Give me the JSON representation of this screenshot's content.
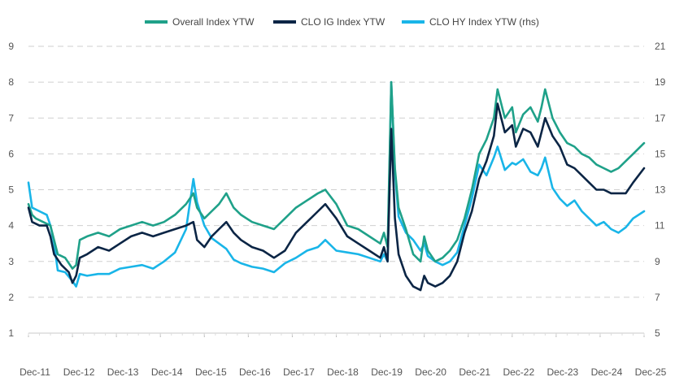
{
  "chart_data": {
    "type": "line",
    "title": "",
    "xlabel": "",
    "ylabel": "",
    "legend_position": "top-center",
    "grid": "horizontal-dashed",
    "x_tick_labels": [
      "Dec-11",
      "Dec-12",
      "Dec-13",
      "Dec-14",
      "Dec-15",
      "Dec-16",
      "Dec-17",
      "Dec-18",
      "Dec-19",
      "Dec-20",
      "Dec-21",
      "Dec-22",
      "Dec-23",
      "Dec-24",
      "Dec-25"
    ],
    "x_range": [
      "2011-12",
      "2025-12"
    ],
    "ylim_left": [
      1,
      9
    ],
    "yticks_left": [
      "1",
      "2",
      "3",
      "4",
      "5",
      "6",
      "7",
      "8",
      "9"
    ],
    "ylim_right": [
      5,
      21
    ],
    "yticks_right": [
      "5",
      "7",
      "9",
      "11",
      "13",
      "15",
      "17",
      "19",
      "21"
    ],
    "series": [
      {
        "name": "Overall Index YTW",
        "color": "#1fa189",
        "axis": "left",
        "points": [
          [
            "2011-12",
            4.6
          ],
          [
            "2012-01",
            4.3
          ],
          [
            "2012-02",
            4.2
          ],
          [
            "2012-04",
            4.1
          ],
          [
            "2012-06",
            4.0
          ],
          [
            "2012-07",
            3.6
          ],
          [
            "2012-08",
            3.2
          ],
          [
            "2012-10",
            3.1
          ],
          [
            "2012-12",
            2.8
          ],
          [
            "2013-01",
            2.9
          ],
          [
            "2013-02",
            3.6
          ],
          [
            "2013-04",
            3.7
          ],
          [
            "2013-07",
            3.8
          ],
          [
            "2013-10",
            3.7
          ],
          [
            "2014-01",
            3.9
          ],
          [
            "2014-04",
            4.0
          ],
          [
            "2014-07",
            4.1
          ],
          [
            "2014-10",
            4.0
          ],
          [
            "2015-01",
            4.1
          ],
          [
            "2015-04",
            4.3
          ],
          [
            "2015-07",
            4.6
          ],
          [
            "2015-09",
            4.9
          ],
          [
            "2015-10",
            4.5
          ],
          [
            "2015-12",
            4.2
          ],
          [
            "2016-02",
            4.4
          ],
          [
            "2016-04",
            4.6
          ],
          [
            "2016-06",
            4.9
          ],
          [
            "2016-08",
            4.5
          ],
          [
            "2016-10",
            4.3
          ],
          [
            "2017-01",
            4.1
          ],
          [
            "2017-04",
            4.0
          ],
          [
            "2017-07",
            3.9
          ],
          [
            "2017-10",
            4.2
          ],
          [
            "2018-01",
            4.5
          ],
          [
            "2018-04",
            4.7
          ],
          [
            "2018-07",
            4.9
          ],
          [
            "2018-09",
            5.0
          ],
          [
            "2018-12",
            4.6
          ],
          [
            "2019-03",
            4.0
          ],
          [
            "2019-06",
            3.9
          ],
          [
            "2019-09",
            3.7
          ],
          [
            "2019-12",
            3.5
          ],
          [
            "2020-01",
            3.8
          ],
          [
            "2020-02",
            3.4
          ],
          [
            "2020-03",
            8.0
          ],
          [
            "2020-04",
            5.6
          ],
          [
            "2020-05",
            4.5
          ],
          [
            "2020-07",
            3.9
          ],
          [
            "2020-09",
            3.2
          ],
          [
            "2020-11",
            3.0
          ],
          [
            "2020-12",
            3.7
          ],
          [
            "2021-01",
            3.3
          ],
          [
            "2021-03",
            3.0
          ],
          [
            "2021-05",
            3.1
          ],
          [
            "2021-07",
            3.3
          ],
          [
            "2021-09",
            3.6
          ],
          [
            "2021-11",
            4.2
          ],
          [
            "2022-01",
            5.0
          ],
          [
            "2022-03",
            6.0
          ],
          [
            "2022-05",
            6.4
          ],
          [
            "2022-07",
            7.0
          ],
          [
            "2022-08",
            7.8
          ],
          [
            "2022-10",
            7.0
          ],
          [
            "2022-12",
            7.3
          ],
          [
            "2023-01",
            6.6
          ],
          [
            "2023-03",
            7.1
          ],
          [
            "2023-05",
            7.3
          ],
          [
            "2023-07",
            6.9
          ],
          [
            "2023-08",
            7.3
          ],
          [
            "2023-09",
            7.8
          ],
          [
            "2023-11",
            7.0
          ],
          [
            "2024-01",
            6.6
          ],
          [
            "2024-03",
            6.3
          ],
          [
            "2024-05",
            6.2
          ],
          [
            "2024-07",
            6.0
          ],
          [
            "2024-09",
            5.9
          ],
          [
            "2024-11",
            5.7
          ],
          [
            "2025-01",
            5.6
          ],
          [
            "2025-03",
            5.5
          ],
          [
            "2025-05",
            5.6
          ],
          [
            "2025-07",
            5.8
          ],
          [
            "2025-09",
            6.0
          ],
          [
            "2025-12",
            6.3
          ]
        ]
      },
      {
        "name": "CLO IG Index YTW",
        "color": "#0b2545",
        "axis": "left",
        "points": [
          [
            "2011-12",
            4.5
          ],
          [
            "2012-01",
            4.1
          ],
          [
            "2012-03",
            4.0
          ],
          [
            "2012-05",
            4.0
          ],
          [
            "2012-06",
            3.7
          ],
          [
            "2012-07",
            3.2
          ],
          [
            "2012-09",
            2.9
          ],
          [
            "2012-11",
            2.7
          ],
          [
            "2012-12",
            2.4
          ],
          [
            "2013-01",
            2.6
          ],
          [
            "2013-02",
            3.1
          ],
          [
            "2013-04",
            3.2
          ],
          [
            "2013-07",
            3.4
          ],
          [
            "2013-10",
            3.3
          ],
          [
            "2014-01",
            3.5
          ],
          [
            "2014-04",
            3.7
          ],
          [
            "2014-07",
            3.8
          ],
          [
            "2014-10",
            3.7
          ],
          [
            "2015-01",
            3.8
          ],
          [
            "2015-04",
            3.9
          ],
          [
            "2015-07",
            4.0
          ],
          [
            "2015-09",
            4.1
          ],
          [
            "2015-10",
            3.6
          ],
          [
            "2015-12",
            3.4
          ],
          [
            "2016-02",
            3.7
          ],
          [
            "2016-04",
            3.9
          ],
          [
            "2016-06",
            4.1
          ],
          [
            "2016-08",
            3.8
          ],
          [
            "2016-10",
            3.6
          ],
          [
            "2017-01",
            3.4
          ],
          [
            "2017-04",
            3.3
          ],
          [
            "2017-07",
            3.1
          ],
          [
            "2017-10",
            3.3
          ],
          [
            "2018-01",
            3.8
          ],
          [
            "2018-04",
            4.1
          ],
          [
            "2018-07",
            4.4
          ],
          [
            "2018-09",
            4.6
          ],
          [
            "2018-12",
            4.2
          ],
          [
            "2019-03",
            3.7
          ],
          [
            "2019-06",
            3.5
          ],
          [
            "2019-09",
            3.3
          ],
          [
            "2019-12",
            3.1
          ],
          [
            "2020-01",
            3.4
          ],
          [
            "2020-02",
            3.0
          ],
          [
            "2020-03",
            6.7
          ],
          [
            "2020-04",
            4.2
          ],
          [
            "2020-05",
            3.2
          ],
          [
            "2020-07",
            2.6
          ],
          [
            "2020-09",
            2.3
          ],
          [
            "2020-11",
            2.2
          ],
          [
            "2020-12",
            2.6
          ],
          [
            "2021-01",
            2.4
          ],
          [
            "2021-03",
            2.3
          ],
          [
            "2021-05",
            2.4
          ],
          [
            "2021-07",
            2.6
          ],
          [
            "2021-09",
            3.0
          ],
          [
            "2021-11",
            3.8
          ],
          [
            "2022-01",
            4.4
          ],
          [
            "2022-03",
            5.3
          ],
          [
            "2022-05",
            5.8
          ],
          [
            "2022-07",
            6.5
          ],
          [
            "2022-08",
            7.4
          ],
          [
            "2022-10",
            6.6
          ],
          [
            "2022-12",
            6.8
          ],
          [
            "2023-01",
            6.2
          ],
          [
            "2023-03",
            6.7
          ],
          [
            "2023-05",
            6.6
          ],
          [
            "2023-07",
            6.2
          ],
          [
            "2023-08",
            6.6
          ],
          [
            "2023-09",
            7.0
          ],
          [
            "2023-11",
            6.5
          ],
          [
            "2024-01",
            6.2
          ],
          [
            "2024-03",
            5.7
          ],
          [
            "2024-05",
            5.6
          ],
          [
            "2024-07",
            5.4
          ],
          [
            "2024-09",
            5.2
          ],
          [
            "2024-11",
            5.0
          ],
          [
            "2025-01",
            5.0
          ],
          [
            "2025-03",
            4.9
          ],
          [
            "2025-05",
            4.9
          ],
          [
            "2025-07",
            4.9
          ],
          [
            "2025-09",
            5.2
          ],
          [
            "2025-12",
            5.6
          ]
        ]
      },
      {
        "name": "CLO HY Index YTW (rhs)",
        "color": "#19b5e8",
        "axis": "right",
        "points": [
          [
            "2011-12",
            13.4
          ],
          [
            "2012-01",
            12.0
          ],
          [
            "2012-03",
            11.8
          ],
          [
            "2012-05",
            11.6
          ],
          [
            "2012-06",
            11.0
          ],
          [
            "2012-07",
            10.0
          ],
          [
            "2012-08",
            8.5
          ],
          [
            "2012-10",
            8.4
          ],
          [
            "2012-12",
            7.9
          ],
          [
            "2013-01",
            7.6
          ],
          [
            "2013-02",
            8.3
          ],
          [
            "2013-04",
            8.2
          ],
          [
            "2013-07",
            8.3
          ],
          [
            "2013-10",
            8.3
          ],
          [
            "2014-01",
            8.6
          ],
          [
            "2014-04",
            8.7
          ],
          [
            "2014-07",
            8.8
          ],
          [
            "2014-10",
            8.6
          ],
          [
            "2015-01",
            9.0
          ],
          [
            "2015-04",
            9.5
          ],
          [
            "2015-07",
            10.8
          ],
          [
            "2015-09",
            13.6
          ],
          [
            "2015-10",
            12.3
          ],
          [
            "2015-12",
            11.0
          ],
          [
            "2016-02",
            10.3
          ],
          [
            "2016-04",
            10.0
          ],
          [
            "2016-06",
            9.7
          ],
          [
            "2016-08",
            9.1
          ],
          [
            "2016-10",
            8.9
          ],
          [
            "2017-01",
            8.7
          ],
          [
            "2017-04",
            8.6
          ],
          [
            "2017-07",
            8.4
          ],
          [
            "2017-10",
            8.9
          ],
          [
            "2018-01",
            9.2
          ],
          [
            "2018-04",
            9.6
          ],
          [
            "2018-07",
            9.8
          ],
          [
            "2018-09",
            10.2
          ],
          [
            "2018-12",
            9.6
          ],
          [
            "2019-03",
            9.5
          ],
          [
            "2019-06",
            9.4
          ],
          [
            "2019-09",
            9.2
          ],
          [
            "2019-12",
            9.0
          ],
          [
            "2020-01",
            9.4
          ],
          [
            "2020-02",
            9.0
          ],
          [
            "2020-03",
            19.0
          ],
          [
            "2020-04",
            14.0
          ],
          [
            "2020-05",
            11.5
          ],
          [
            "2020-07",
            10.6
          ],
          [
            "2020-09",
            10.2
          ],
          [
            "2020-11",
            9.6
          ],
          [
            "2020-12",
            10.0
          ],
          [
            "2021-01",
            9.3
          ],
          [
            "2021-03",
            9.0
          ],
          [
            "2021-05",
            8.8
          ],
          [
            "2021-07",
            9.0
          ],
          [
            "2021-09",
            9.5
          ],
          [
            "2021-11",
            11.0
          ],
          [
            "2022-01",
            12.5
          ],
          [
            "2022-03",
            14.4
          ],
          [
            "2022-05",
            13.8
          ],
          [
            "2022-07",
            14.8
          ],
          [
            "2022-08",
            15.4
          ],
          [
            "2022-10",
            14.1
          ],
          [
            "2022-12",
            14.5
          ],
          [
            "2023-01",
            14.4
          ],
          [
            "2023-03",
            14.7
          ],
          [
            "2023-05",
            14.0
          ],
          [
            "2023-07",
            13.8
          ],
          [
            "2023-08",
            14.2
          ],
          [
            "2023-09",
            14.8
          ],
          [
            "2023-11",
            13.1
          ],
          [
            "2024-01",
            12.5
          ],
          [
            "2024-03",
            12.1
          ],
          [
            "2024-05",
            12.4
          ],
          [
            "2024-07",
            11.8
          ],
          [
            "2024-09",
            11.4
          ],
          [
            "2024-11",
            11.0
          ],
          [
            "2025-01",
            11.2
          ],
          [
            "2025-03",
            10.8
          ],
          [
            "2025-05",
            10.6
          ],
          [
            "2025-07",
            10.9
          ],
          [
            "2025-09",
            11.4
          ],
          [
            "2025-12",
            11.8
          ]
        ]
      }
    ]
  }
}
